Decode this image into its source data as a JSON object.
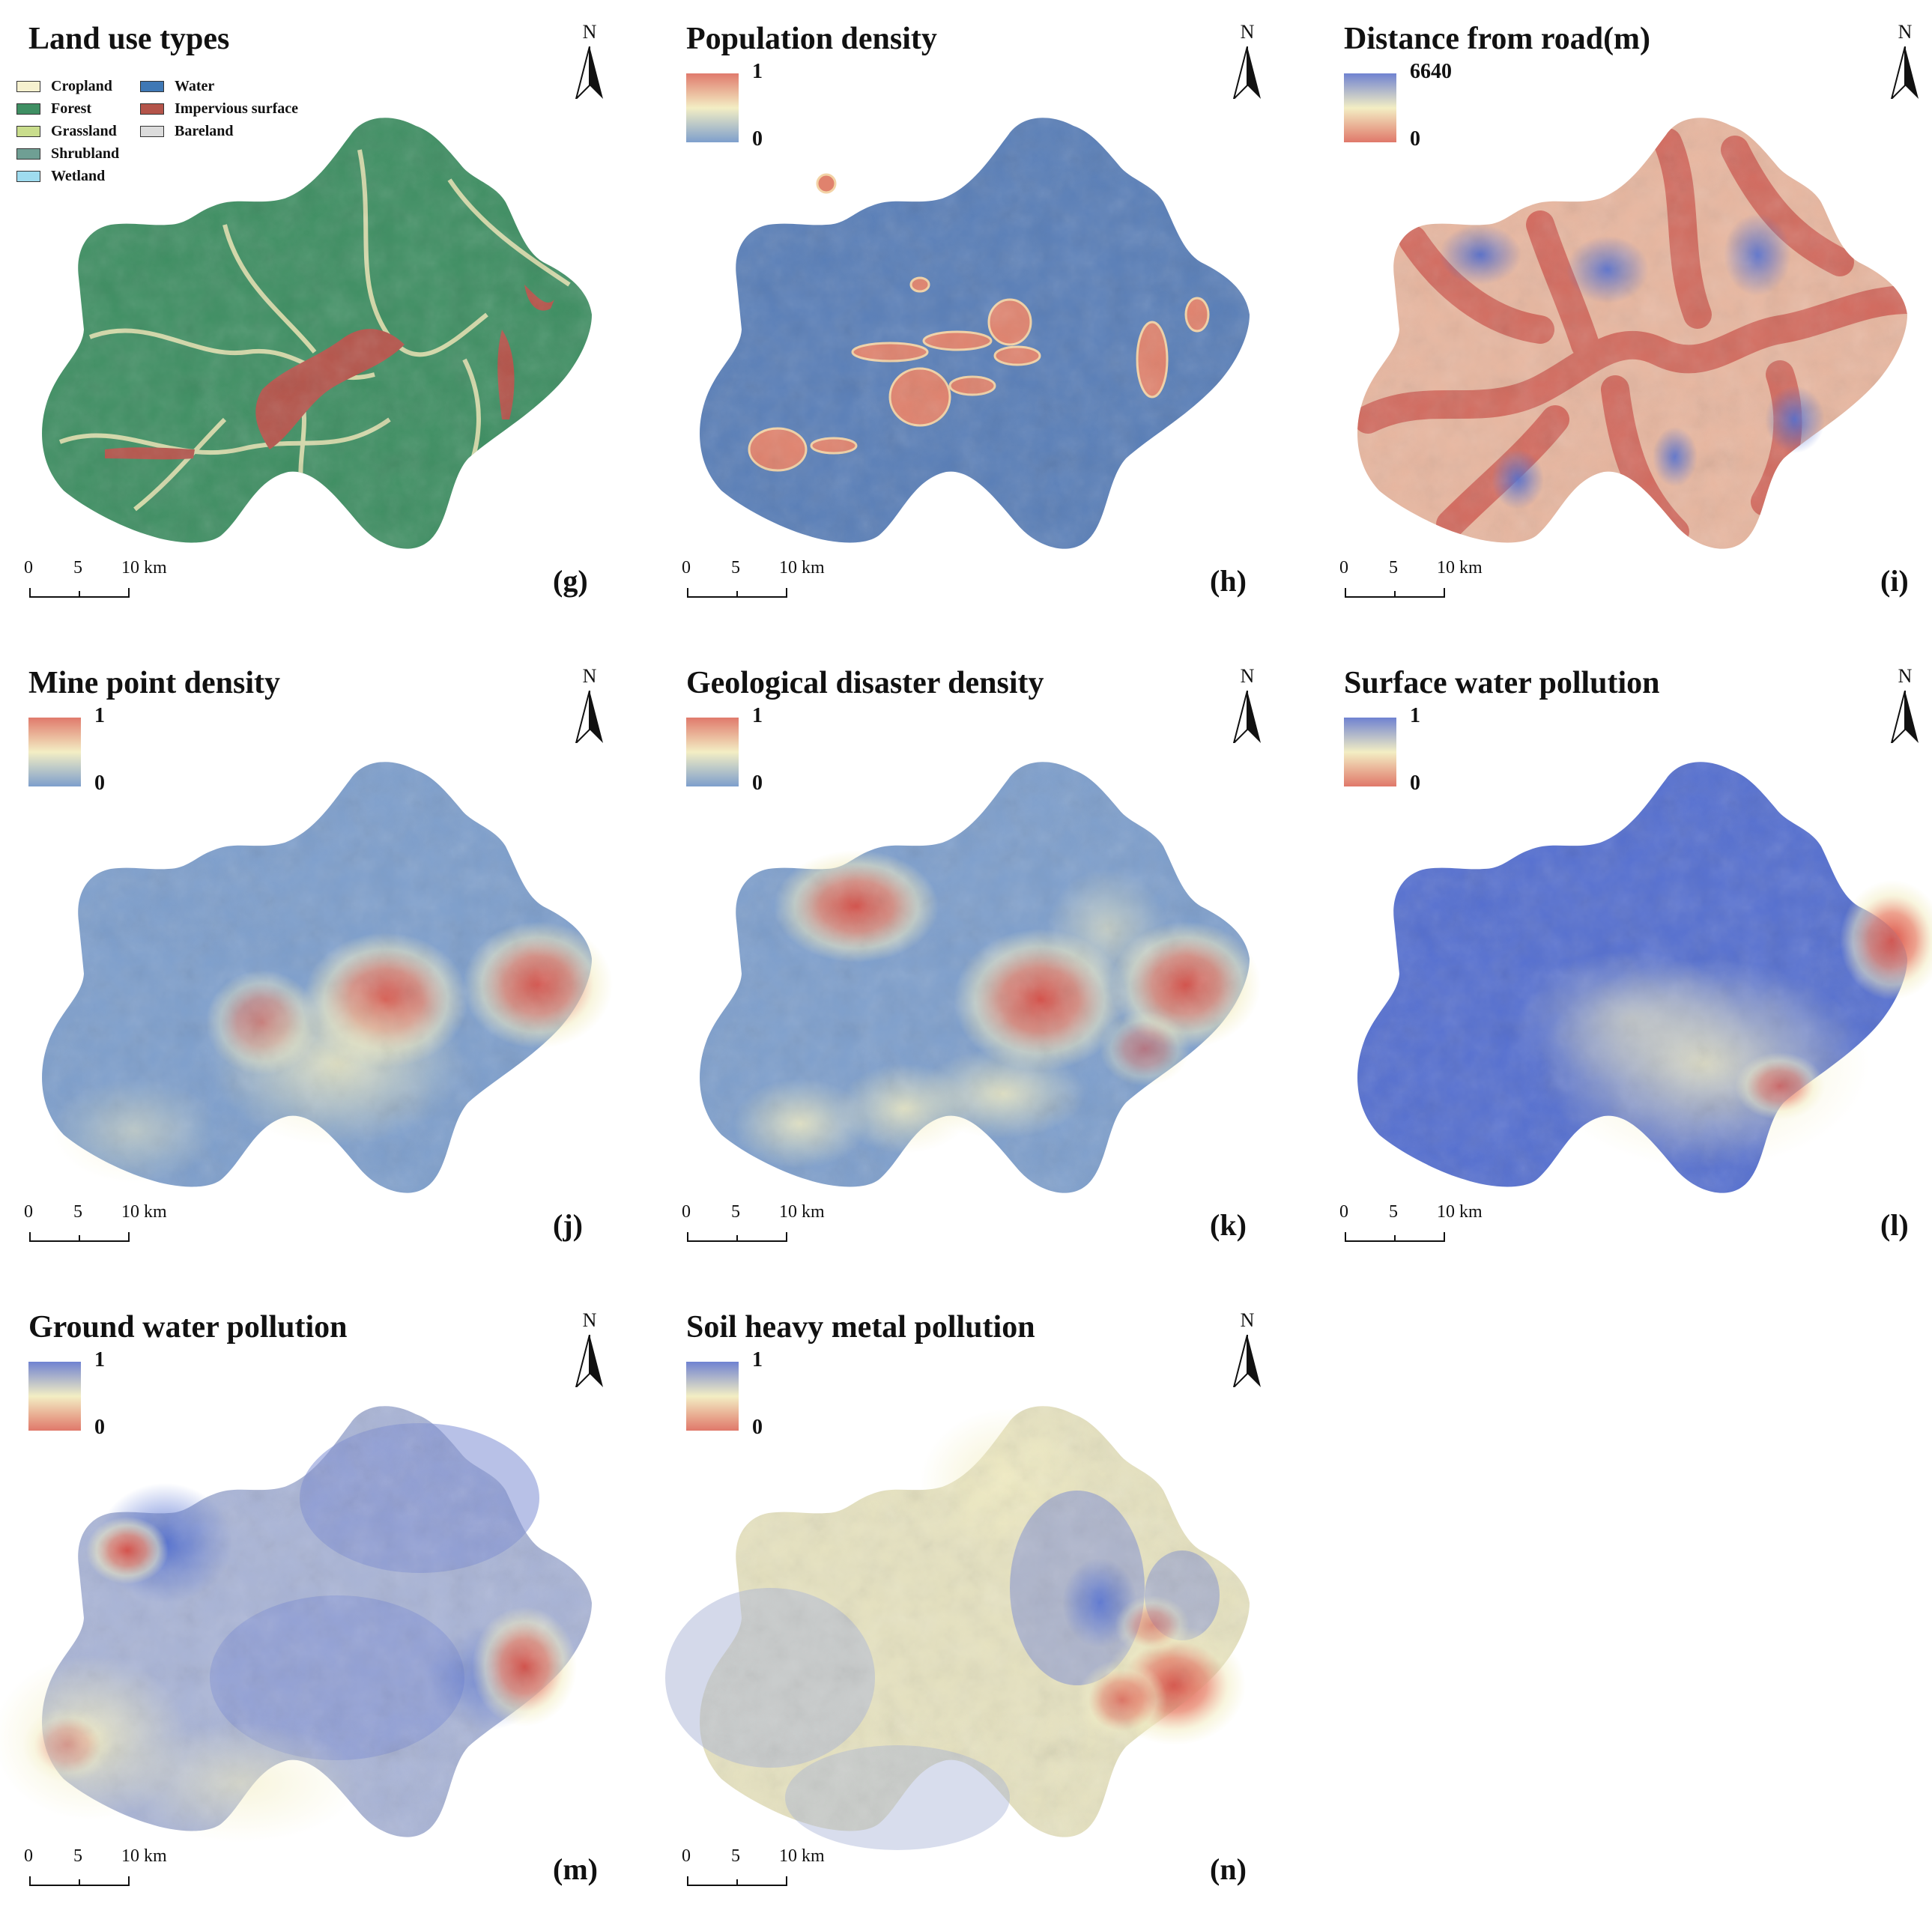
{
  "panels": [
    {
      "id": "g",
      "title": "Land use types",
      "letter": "(g)",
      "legend": [
        {
          "label": "Cropland",
          "color": "#f6f1cf"
        },
        {
          "label": "Forest",
          "color": "#3f8f63"
        },
        {
          "label": "Grassland",
          "color": "#c9dd8c"
        },
        {
          "label": "Shrubland",
          "color": "#6f9f94"
        },
        {
          "label": "Wetland",
          "color": "#9fdcef"
        },
        {
          "label": "Water",
          "color": "#3f78b5"
        },
        {
          "label": "Impervious surface",
          "color": "#b4544a"
        },
        {
          "label": "Bareland",
          "color": "#dcdcdc"
        }
      ]
    },
    {
      "id": "h",
      "title": "Population density",
      "letter": "(h)",
      "ramp_max": "1",
      "ramp_min": "0",
      "ramp_top": "#e07a6c",
      "ramp_mid": "#f3eec4",
      "ramp_bottom": "#7e9fcc"
    },
    {
      "id": "i",
      "title": "Distance from road(m)",
      "letter": "(i)",
      "ramp_max": "6640",
      "ramp_min": "0",
      "ramp_top": "#6f82d1",
      "ramp_mid": "#f3eec4",
      "ramp_bottom": "#e0786a"
    },
    {
      "id": "j",
      "title": "Mine point density",
      "letter": "(j)",
      "ramp_max": "1",
      "ramp_min": "0",
      "ramp_top": "#e07a6c",
      "ramp_mid": "#f3eec4",
      "ramp_bottom": "#7e9fcc"
    },
    {
      "id": "k",
      "title": "Geological disaster density",
      "letter": "(k)",
      "ramp_max": "1",
      "ramp_min": "0",
      "ramp_top": "#e07a6c",
      "ramp_mid": "#f3eec4",
      "ramp_bottom": "#7e9fcc"
    },
    {
      "id": "l",
      "title": "Surface water pollution",
      "letter": "(l)",
      "ramp_max": "1",
      "ramp_min": "0",
      "ramp_top": "#6f82d1",
      "ramp_mid": "#f3eec4",
      "ramp_bottom": "#e0786a"
    },
    {
      "id": "m",
      "title": "Ground water pollution",
      "letter": "(m)",
      "ramp_max": "1",
      "ramp_min": "0",
      "ramp_top": "#6f82d1",
      "ramp_mid": "#f3eec4",
      "ramp_bottom": "#e0786a"
    },
    {
      "id": "n",
      "title": "Soil heavy metal pollution",
      "letter": "(n)",
      "ramp_max": "1",
      "ramp_min": "0",
      "ramp_top": "#6f82d1",
      "ramp_mid": "#f3eec4",
      "ramp_bottom": "#e0786a"
    }
  ],
  "north_label": "N",
  "scale": {
    "t0": "0",
    "t1": "5",
    "t2": "10 km"
  }
}
